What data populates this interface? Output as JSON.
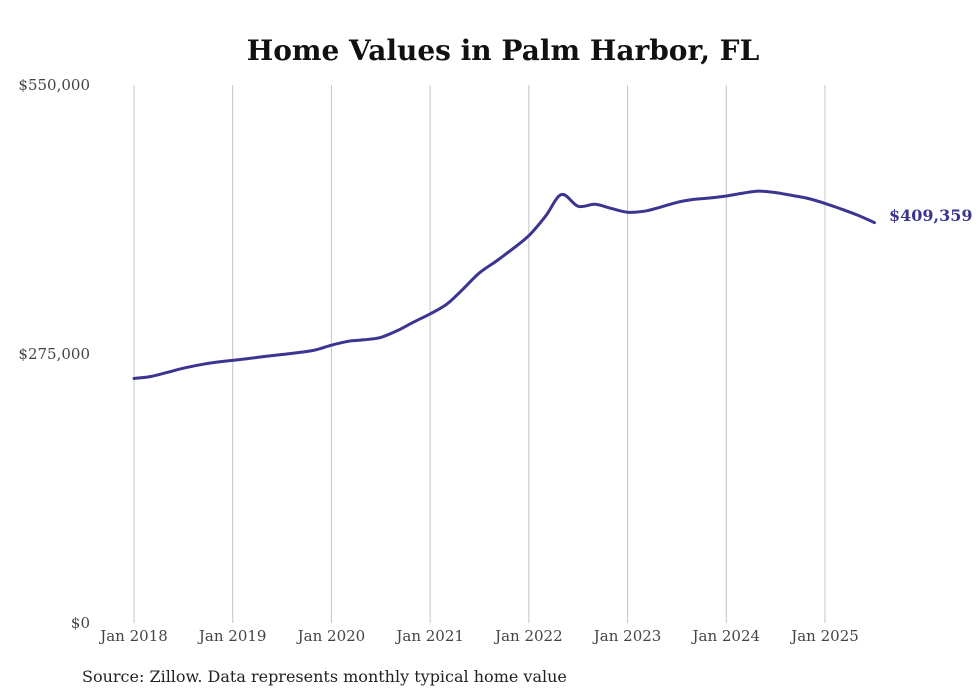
{
  "chart_data": {
    "type": "line",
    "title": "Home Values in Palm Harbor, FL",
    "xlabel": "",
    "ylabel": "",
    "ylim": [
      0,
      550000
    ],
    "y_ticks": [
      {
        "value": 0,
        "label": "$0"
      },
      {
        "value": 275000,
        "label": "$275,000"
      },
      {
        "value": 550000,
        "label": "$550,000"
      }
    ],
    "x_ticks": [
      {
        "value": 2018.0,
        "label": "Jan 2018"
      },
      {
        "value": 2019.0,
        "label": "Jan 2019"
      },
      {
        "value": 2020.0,
        "label": "Jan 2020"
      },
      {
        "value": 2021.0,
        "label": "Jan 2021"
      },
      {
        "value": 2022.0,
        "label": "Jan 2022"
      },
      {
        "value": 2023.0,
        "label": "Jan 2023"
      },
      {
        "value": 2024.0,
        "label": "Jan 2024"
      },
      {
        "value": 2025.0,
        "label": "Jan 2025"
      }
    ],
    "grid": {
      "vertical": true,
      "horizontal": false
    },
    "legend": "none",
    "series": [
      {
        "color": "#3b3591",
        "x": [
          2018.0,
          2018.17,
          2018.33,
          2018.5,
          2018.67,
          2018.83,
          2019.0,
          2019.17,
          2019.33,
          2019.5,
          2019.67,
          2019.83,
          2020.0,
          2020.17,
          2020.33,
          2020.5,
          2020.67,
          2020.83,
          2021.0,
          2021.17,
          2021.33,
          2021.5,
          2021.67,
          2021.83,
          2022.0,
          2022.17,
          2022.33,
          2022.5,
          2022.67,
          2022.83,
          2023.0,
          2023.17,
          2023.33,
          2023.5,
          2023.67,
          2023.83,
          2024.0,
          2024.17,
          2024.33,
          2024.5,
          2024.67,
          2024.83,
          2025.0,
          2025.17,
          2025.33,
          2025.5
        ],
        "y": [
          250000,
          252000,
          256000,
          260500,
          264000,
          266500,
          268500,
          270500,
          272500,
          274500,
          276500,
          279000,
          284000,
          288000,
          289500,
          292000,
          299000,
          307500,
          316000,
          326000,
          341000,
          358000,
          370000,
          382000,
          396000,
          416000,
          438000,
          426000,
          428000,
          424000,
          420000,
          421000,
          425000,
          430000,
          433000,
          434500,
          436500,
          439500,
          441500,
          440000,
          437000,
          434000,
          429000,
          423000,
          417000,
          409359
        ]
      }
    ],
    "end_label": "$409,359"
  },
  "source_note": "Source: Zillow. Data represents monthly typical home value"
}
